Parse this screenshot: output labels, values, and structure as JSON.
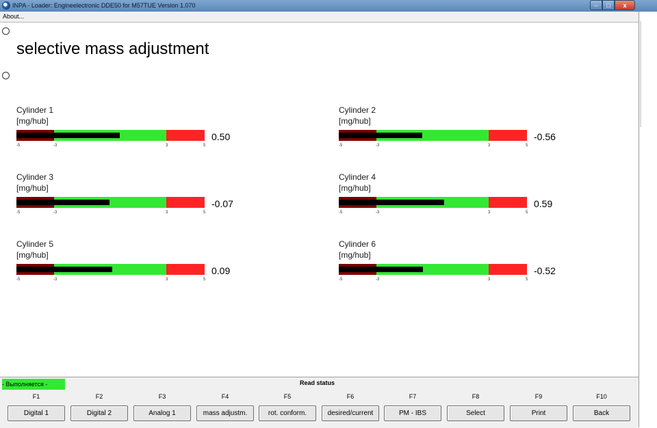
{
  "window": {
    "title": "INPA - Loader:  Engineelectronic DDE50 for M57TUE Version 1.070",
    "icon": "bmw-logo-icon",
    "controls": {
      "minimize": "–",
      "maximize": "□",
      "close": "x"
    }
  },
  "menu": {
    "about": "About..."
  },
  "page": {
    "title": "selective mass adjustment"
  },
  "scale_ticks": [
    "-5",
    "-3",
    "3",
    "5"
  ],
  "colors": {
    "low_zone": "#7a0000",
    "ok_zone": "#33e833",
    "high_zone": "#ff2424",
    "needle": "#000000"
  },
  "gauges": [
    {
      "label": "Cylinder 1",
      "unit": "[mg/hub]",
      "value": "0.50",
      "level": 0.5
    },
    {
      "label": "Cylinder 2",
      "unit": "[mg/hub]",
      "value": "-0.56",
      "level": -0.56
    },
    {
      "label": "Cylinder 3",
      "unit": "[mg/hub]",
      "value": "-0.07",
      "level": -0.07
    },
    {
      "label": "Cylinder 4",
      "unit": "[mg/hub]",
      "value": "0.59",
      "level": 0.59
    },
    {
      "label": "Cylinder 5",
      "unit": "[mg/hub]",
      "value": "0.09",
      "level": 0.09
    },
    {
      "label": "Cylinder 6",
      "unit": "[mg/hub]",
      "value": "-0.52",
      "level": -0.52
    }
  ],
  "status": {
    "executing": "- Выполняется -",
    "read": "Read status"
  },
  "fkeys": [
    {
      "key": "F1",
      "label": "Digital 1"
    },
    {
      "key": "F2",
      "label": "Digital 2"
    },
    {
      "key": "F3",
      "label": "Analog 1"
    },
    {
      "key": "F4",
      "label": "mass adjustm."
    },
    {
      "key": "F5",
      "label": "rot. conform."
    },
    {
      "key": "F6",
      "label": "desired/current"
    },
    {
      "key": "F7",
      "label": "PM - IBS"
    },
    {
      "key": "F8",
      "label": "Select"
    },
    {
      "key": "F9",
      "label": "Print"
    },
    {
      "key": "F10",
      "label": "Back"
    }
  ]
}
